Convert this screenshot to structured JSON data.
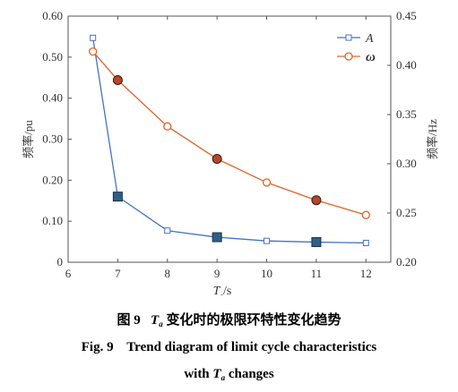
{
  "chart_data": {
    "type": "line",
    "x": [
      6.5,
      7,
      8,
      9,
      10,
      11,
      12
    ],
    "xlim": [
      6,
      12.5
    ],
    "xticks": [
      "6",
      "7",
      "8",
      "9",
      "10",
      "11",
      "12"
    ],
    "xlabel_main": "T",
    "xlabel_sub": "a",
    "xlabel_unit": "/s",
    "ylabel_left": "频率/pu",
    "ylim_left": [
      0,
      0.6
    ],
    "yticks_left": [
      "0",
      "0.10",
      "0.20",
      "0.30",
      "0.40",
      "0.50",
      "0.60"
    ],
    "ylabel_right": "频率/Hz",
    "ylim_right": [
      0.2,
      0.45
    ],
    "yticks_right": [
      "0.20",
      "0.25",
      "0.30",
      "0.35",
      "0.40",
      "0.45"
    ],
    "grid": false,
    "legend_position": "top-right",
    "series": [
      {
        "name": "A",
        "axis": "left",
        "color": "#4472c4",
        "marker": "square",
        "values": [
          0.547,
          0.16,
          0.077,
          0.061,
          0.052,
          0.049,
          0.047
        ],
        "highlighted": [
          false,
          true,
          false,
          true,
          false,
          true,
          false
        ]
      },
      {
        "name": "ω",
        "axis": "right",
        "color": "#e0632a",
        "marker": "circle",
        "values": [
          0.414,
          0.385,
          0.338,
          0.305,
          0.281,
          0.263,
          0.248
        ],
        "highlighted": [
          false,
          true,
          false,
          true,
          false,
          true,
          false
        ]
      }
    ]
  },
  "caption": {
    "cn_fig": "图 9",
    "cn_var": "T",
    "cn_sub": "a",
    "cn_text": " 变化时的极限环特性变化趋势",
    "en_line1": "Fig. 9    Trend diagram of limit cycle characteristics",
    "en_pre": "with ",
    "en_var": "T",
    "en_sub": "a",
    "en_post": " changes"
  }
}
